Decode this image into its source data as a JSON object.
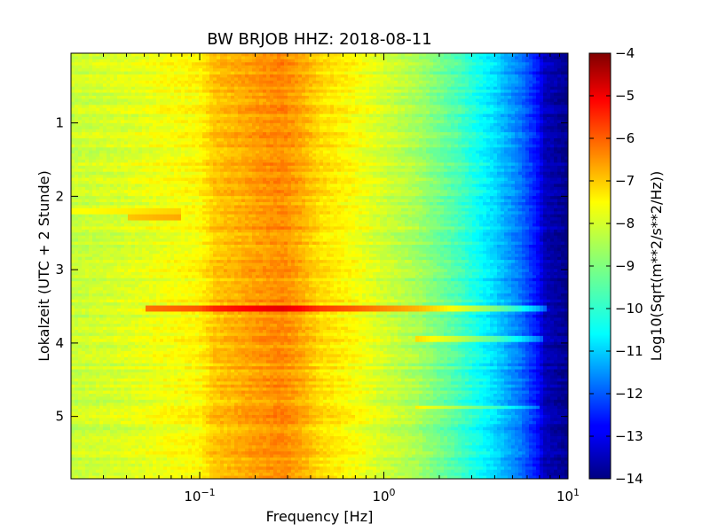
{
  "chart_data": {
    "type": "heatmap",
    "title": "BW BRJOB HHZ: 2018-08-11",
    "xlabel": "Frequency [Hz]",
    "ylabel": "Lokalzeit (UTC + 2 Stunde)",
    "x_scale": "log",
    "xlim": [
      0.02,
      10
    ],
    "ylim": [
      5.85,
      0.05
    ],
    "x_ticks": [
      {
        "value": 0.1,
        "base": "10",
        "exp": "-1"
      },
      {
        "value": 1,
        "base": "10",
        "exp": "0"
      },
      {
        "value": 10,
        "base": "10",
        "exp": "1"
      }
    ],
    "y_ticks": [
      {
        "value": 1,
        "label": "1"
      },
      {
        "value": 2,
        "label": "2"
      },
      {
        "value": 3,
        "label": "3"
      },
      {
        "value": 4,
        "label": "4"
      },
      {
        "value": 5,
        "label": "5"
      }
    ],
    "colorbar": {
      "label": "Log10(Sqrt(m**2/s**2/Hz))",
      "colormap": "jet",
      "range": [
        -14,
        -4
      ],
      "ticks": [
        {
          "value": -4,
          "label": "−4"
        },
        {
          "value": -5,
          "label": "−5"
        },
        {
          "value": -6,
          "label": "−6"
        },
        {
          "value": -7,
          "label": "−7"
        },
        {
          "value": -8,
          "label": "−8"
        },
        {
          "value": -9,
          "label": "−9"
        },
        {
          "value": -10,
          "label": "−10"
        },
        {
          "value": -11,
          "label": "−11"
        },
        {
          "value": -12,
          "label": "−12"
        },
        {
          "value": -13,
          "label": "−13"
        },
        {
          "value": -14,
          "label": "−14"
        }
      ]
    },
    "spectrum_profile": [
      {
        "freq": 0.02,
        "value": -8.3
      },
      {
        "freq": 0.04,
        "value": -8.1
      },
      {
        "freq": 0.06,
        "value": -7.9
      },
      {
        "freq": 0.1,
        "value": -7.7
      },
      {
        "freq": 0.12,
        "value": -7.2
      },
      {
        "freq": 0.2,
        "value": -6.8
      },
      {
        "freq": 0.28,
        "value": -6.6
      },
      {
        "freq": 0.35,
        "value": -6.9
      },
      {
        "freq": 0.45,
        "value": -7.4
      },
      {
        "freq": 0.7,
        "value": -7.8
      },
      {
        "freq": 1.0,
        "value": -8.2
      },
      {
        "freq": 1.5,
        "value": -8.6
      },
      {
        "freq": 2.5,
        "value": -9.5
      },
      {
        "freq": 4.0,
        "value": -10.6
      },
      {
        "freq": 5.5,
        "value": -11.6
      },
      {
        "freq": 6.8,
        "value": -12.6
      },
      {
        "freq": 7.5,
        "value": -13.4
      },
      {
        "freq": 10,
        "value": -13.9
      }
    ],
    "events": [
      {
        "time": 2.2,
        "value_offset": 0.5,
        "freq_min": 0.02,
        "freq_max": 0.08
      },
      {
        "time": 2.28,
        "value_offset": 0.9,
        "freq_min": 0.04,
        "freq_max": 0.08
      },
      {
        "time": 3.52,
        "value_offset": 1.6,
        "freq_min": 0.05,
        "freq_max": 7.5
      },
      {
        "time": 3.95,
        "value_offset": 1.2,
        "freq_min": 1.5,
        "freq_max": 7.2
      },
      {
        "time": 4.88,
        "value_offset": 1.0,
        "freq_min": 1.5,
        "freq_max": 7.0
      }
    ]
  }
}
